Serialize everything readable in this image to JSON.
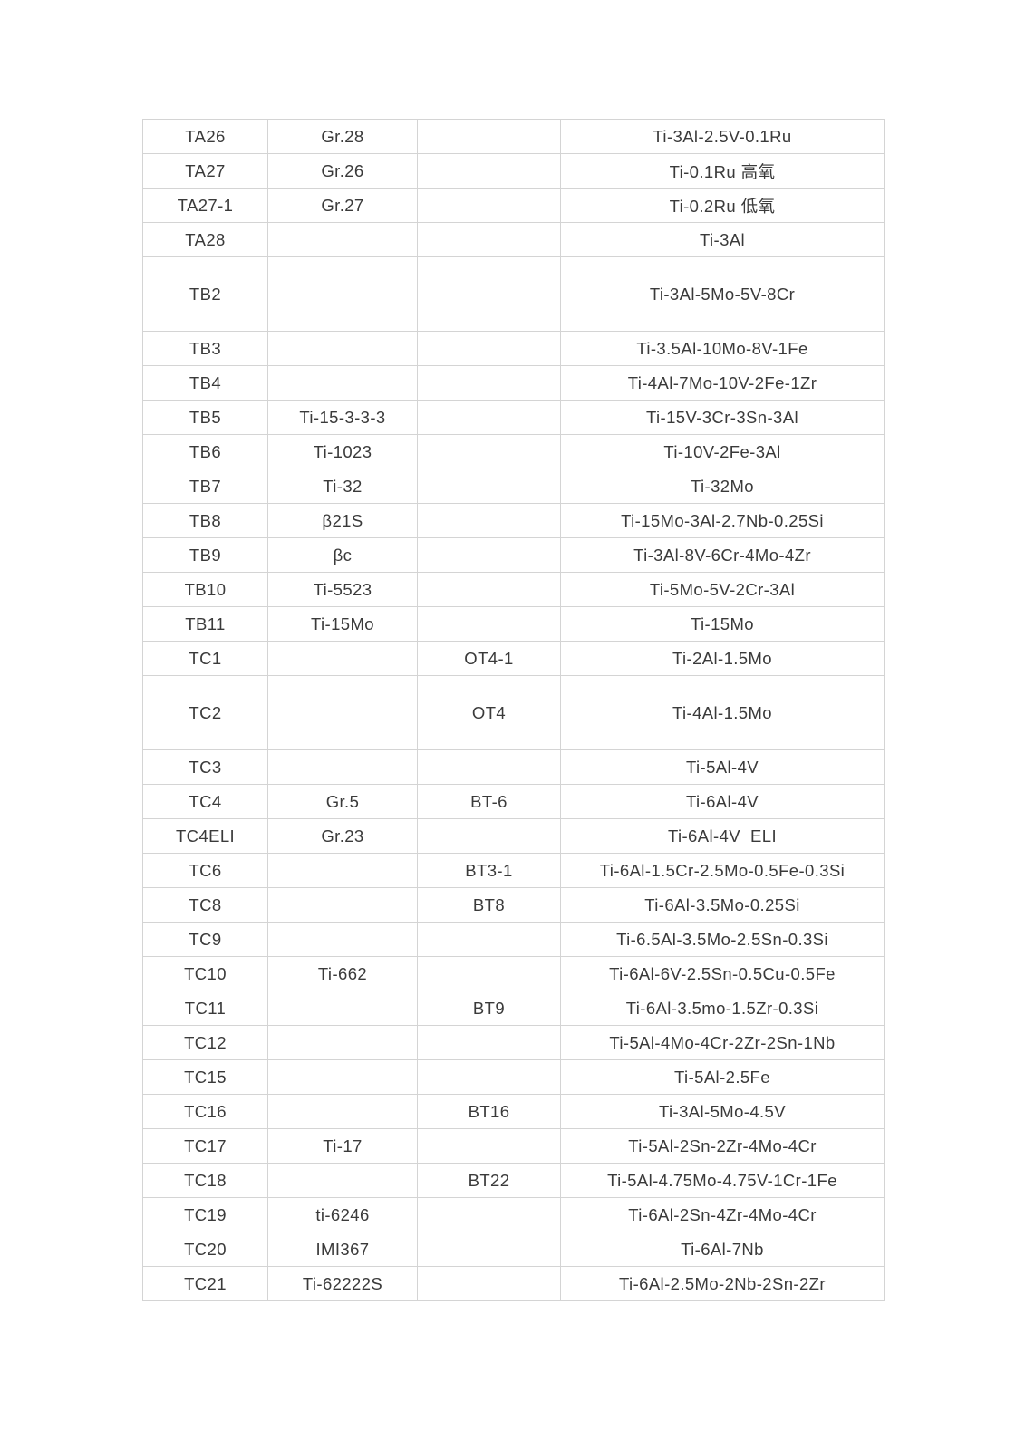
{
  "page": {
    "background_color": "#ffffff"
  },
  "table": {
    "border_color": "#d4d4d4",
    "text_color": "#3a3a3a",
    "column_keys": [
      "grade",
      "us_designation",
      "ru_designation",
      "composition"
    ],
    "rows": [
      {
        "grade": "TA26",
        "us_designation": "Gr.28",
        "ru_designation": "",
        "composition": "Ti-3Al-2.5V-0.1Ru",
        "tall": false
      },
      {
        "grade": "TA27",
        "us_designation": "Gr.26",
        "ru_designation": "",
        "composition": "Ti-0.1Ru 高氧",
        "tall": false
      },
      {
        "grade": "TA27-1",
        "us_designation": "Gr.27",
        "ru_designation": "",
        "composition": "Ti-0.2Ru 低氧",
        "tall": false
      },
      {
        "grade": "TA28",
        "us_designation": "",
        "ru_designation": "",
        "composition": "Ti-3Al",
        "tall": false
      },
      {
        "grade": "TB2",
        "us_designation": "",
        "ru_designation": "",
        "composition": "Ti-3Al-5Mo-5V-8Cr",
        "tall": true
      },
      {
        "grade": "TB3",
        "us_designation": "",
        "ru_designation": "",
        "composition": "Ti-3.5Al-10Mo-8V-1Fe",
        "tall": false
      },
      {
        "grade": "TB4",
        "us_designation": "",
        "ru_designation": "",
        "composition": "Ti-4Al-7Mo-10V-2Fe-1Zr",
        "tall": false
      },
      {
        "grade": "TB5",
        "us_designation": "Ti-15-3-3-3",
        "ru_designation": "",
        "composition": "Ti-15V-3Cr-3Sn-3Al",
        "tall": false
      },
      {
        "grade": "TB6",
        "us_designation": "Ti-1023",
        "ru_designation": "",
        "composition": "Ti-10V-2Fe-3Al",
        "tall": false
      },
      {
        "grade": "TB7",
        "us_designation": "Ti-32",
        "ru_designation": "",
        "composition": "Ti-32Mo",
        "tall": false
      },
      {
        "grade": "TB8",
        "us_designation": "β21S",
        "ru_designation": "",
        "composition": "Ti-15Mo-3Al-2.7Nb-0.25Si",
        "tall": false
      },
      {
        "grade": "TB9",
        "us_designation": "βc",
        "ru_designation": "",
        "composition": "Ti-3Al-8V-6Cr-4Mo-4Zr",
        "tall": false
      },
      {
        "grade": "TB10",
        "us_designation": "Ti-5523",
        "ru_designation": "",
        "composition": "Ti-5Mo-5V-2Cr-3Al",
        "tall": false
      },
      {
        "grade": "TB11",
        "us_designation": "Ti-15Mo",
        "ru_designation": "",
        "composition": "Ti-15Mo",
        "tall": false
      },
      {
        "grade": "TC1",
        "us_designation": "",
        "ru_designation": "OT4-1",
        "composition": "Ti-2Al-1.5Mo",
        "tall": false
      },
      {
        "grade": "TC2",
        "us_designation": "",
        "ru_designation": "OT4",
        "composition": "Ti-4Al-1.5Mo",
        "tall": true
      },
      {
        "grade": "TC3",
        "us_designation": "",
        "ru_designation": "",
        "composition": "Ti-5Al-4V",
        "tall": false
      },
      {
        "grade": "TC4",
        "us_designation": "Gr.5",
        "ru_designation": "BT-6",
        "composition": "Ti-6Al-4V",
        "tall": false
      },
      {
        "grade": "TC4ELI",
        "us_designation": "Gr.23",
        "ru_designation": "",
        "composition": "Ti-6Al-4V  ELI",
        "tall": false
      },
      {
        "grade": "TC6",
        "us_designation": "",
        "ru_designation": "BT3-1",
        "composition": "Ti-6Al-1.5Cr-2.5Mo-0.5Fe-0.3Si",
        "tall": false
      },
      {
        "grade": "TC8",
        "us_designation": "",
        "ru_designation": "BT8",
        "composition": "Ti-6Al-3.5Mo-0.25Si",
        "tall": false
      },
      {
        "grade": "TC9",
        "us_designation": "",
        "ru_designation": "",
        "composition": "Ti-6.5Al-3.5Mo-2.5Sn-0.3Si",
        "tall": false
      },
      {
        "grade": "TC10",
        "us_designation": "Ti-662",
        "ru_designation": "",
        "composition": "Ti-6Al-6V-2.5Sn-0.5Cu-0.5Fe",
        "tall": false
      },
      {
        "grade": "TC11",
        "us_designation": "",
        "ru_designation": "BT9",
        "composition": "Ti-6Al-3.5mo-1.5Zr-0.3Si",
        "tall": false
      },
      {
        "grade": "TC12",
        "us_designation": "",
        "ru_designation": "",
        "composition": "Ti-5Al-4Mo-4Cr-2Zr-2Sn-1Nb",
        "tall": false
      },
      {
        "grade": "TC15",
        "us_designation": "",
        "ru_designation": "",
        "composition": "Ti-5Al-2.5Fe",
        "tall": false
      },
      {
        "grade": "TC16",
        "us_designation": "",
        "ru_designation": "BT16",
        "composition": "Ti-3Al-5Mo-4.5V",
        "tall": false
      },
      {
        "grade": "TC17",
        "us_designation": "Ti-17",
        "ru_designation": "",
        "composition": "Ti-5Al-2Sn-2Zr-4Mo-4Cr",
        "tall": false
      },
      {
        "grade": "TC18",
        "us_designation": "",
        "ru_designation": "BT22",
        "composition": "Ti-5Al-4.75Mo-4.75V-1Cr-1Fe",
        "tall": false
      },
      {
        "grade": "TC19",
        "us_designation": "ti-6246",
        "ru_designation": "",
        "composition": "Ti-6Al-2Sn-4Zr-4Mo-4Cr",
        "tall": false
      },
      {
        "grade": "TC20",
        "us_designation": "IMI367",
        "ru_designation": "",
        "composition": "Ti-6Al-7Nb",
        "tall": false
      },
      {
        "grade": "TC21",
        "us_designation": "Ti-62222S",
        "ru_designation": "",
        "composition": "Ti-6Al-2.5Mo-2Nb-2Sn-2Zr",
        "tall": false
      }
    ]
  }
}
